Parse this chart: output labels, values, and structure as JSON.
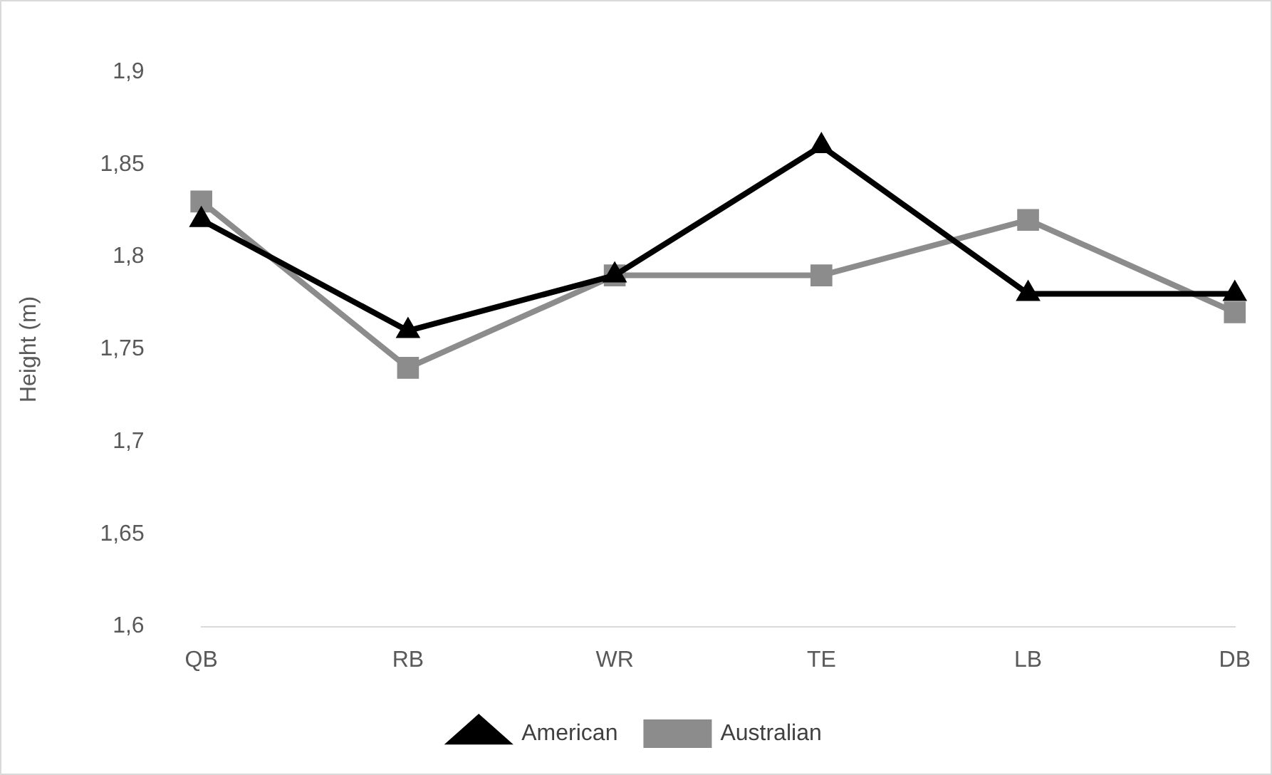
{
  "chart_data": {
    "type": "line",
    "ylabel": "Height (m)",
    "categories": [
      "QB",
      "RB",
      "WR",
      "TE",
      "LB",
      "DB"
    ],
    "series": [
      {
        "name": "American",
        "color": "#000000",
        "marker": "triangle",
        "values": [
          1.82,
          1.76,
          1.79,
          1.86,
          1.78,
          1.78
        ]
      },
      {
        "name": "Australian",
        "color": "#8c8c8c",
        "marker": "square",
        "values": [
          1.83,
          1.74,
          1.79,
          1.79,
          1.82,
          1.77
        ]
      }
    ],
    "ylim": [
      1.6,
      1.9
    ],
    "yticks": [
      {
        "value": 1.6,
        "label": "1,6"
      },
      {
        "value": 1.65,
        "label": "1,65"
      },
      {
        "value": 1.7,
        "label": "1,7"
      },
      {
        "value": 1.75,
        "label": "1,75"
      },
      {
        "value": 1.8,
        "label": "1,8"
      },
      {
        "value": 1.85,
        "label": "1,85"
      },
      {
        "value": 1.9,
        "label": "1,9"
      }
    ],
    "grid": false,
    "legend": "bottom",
    "line_style": "solid"
  }
}
